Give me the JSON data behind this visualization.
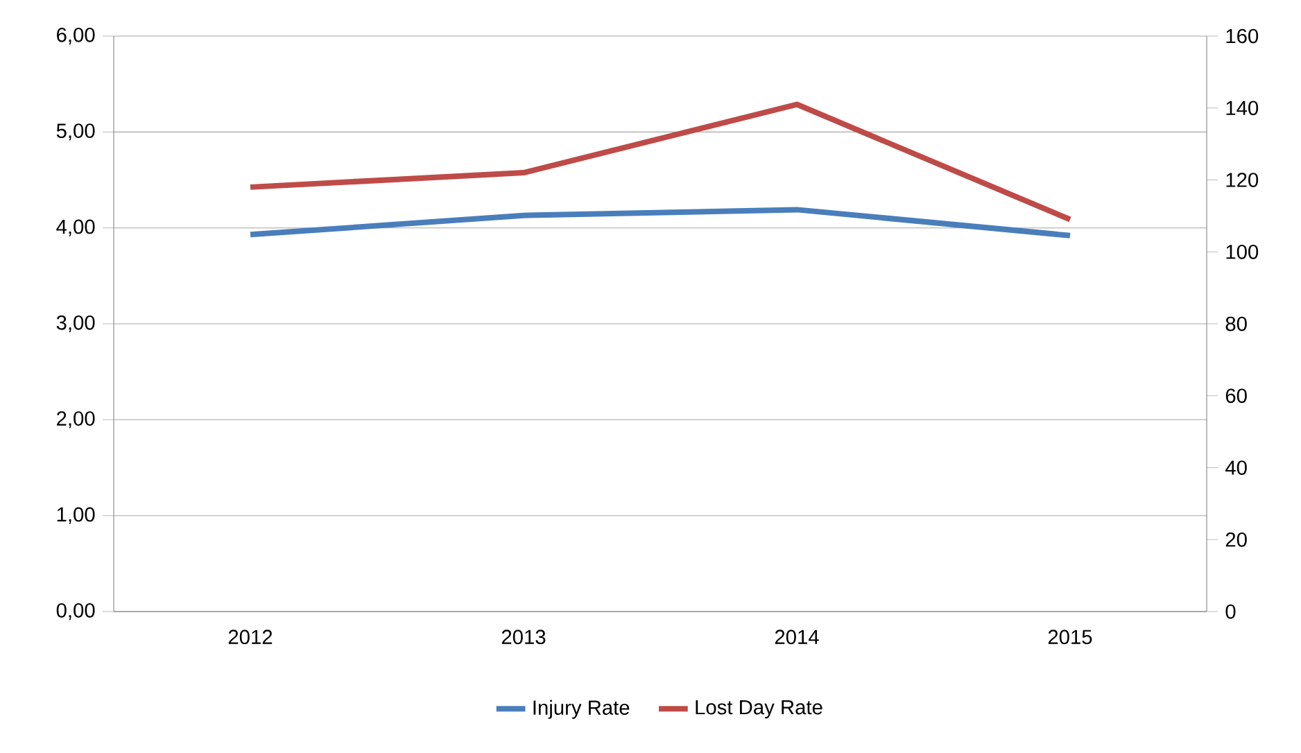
{
  "chart_data": {
    "type": "line",
    "categories": [
      "2012",
      "2013",
      "2014",
      "2015"
    ],
    "series": [
      {
        "name": "Injury Rate",
        "color": "#4a7ebb",
        "values": [
          3.93,
          4.13,
          4.19,
          3.92
        ]
      },
      {
        "name": "Lost Day Rate",
        "color": "#be4b48",
        "values": [
          118,
          122,
          141,
          109
        ],
        "axis": "y2"
      }
    ],
    "ylim": [
      0,
      6
    ],
    "yticks": [
      {
        "value": 0,
        "label": "0,00"
      },
      {
        "value": 1,
        "label": "1,00"
      },
      {
        "value": 2,
        "label": "2,00"
      },
      {
        "value": 3,
        "label": "3,00"
      },
      {
        "value": 4,
        "label": "4,00"
      },
      {
        "value": 5,
        "label": "5,00"
      },
      {
        "value": 6,
        "label": "6,00"
      }
    ],
    "y2lim": [
      0,
      160
    ],
    "y2ticks": [
      0,
      20,
      40,
      60,
      80,
      100,
      120,
      140,
      160
    ],
    "grid": "y",
    "legend": "bottom",
    "marker": "none",
    "line_style": "solid"
  }
}
